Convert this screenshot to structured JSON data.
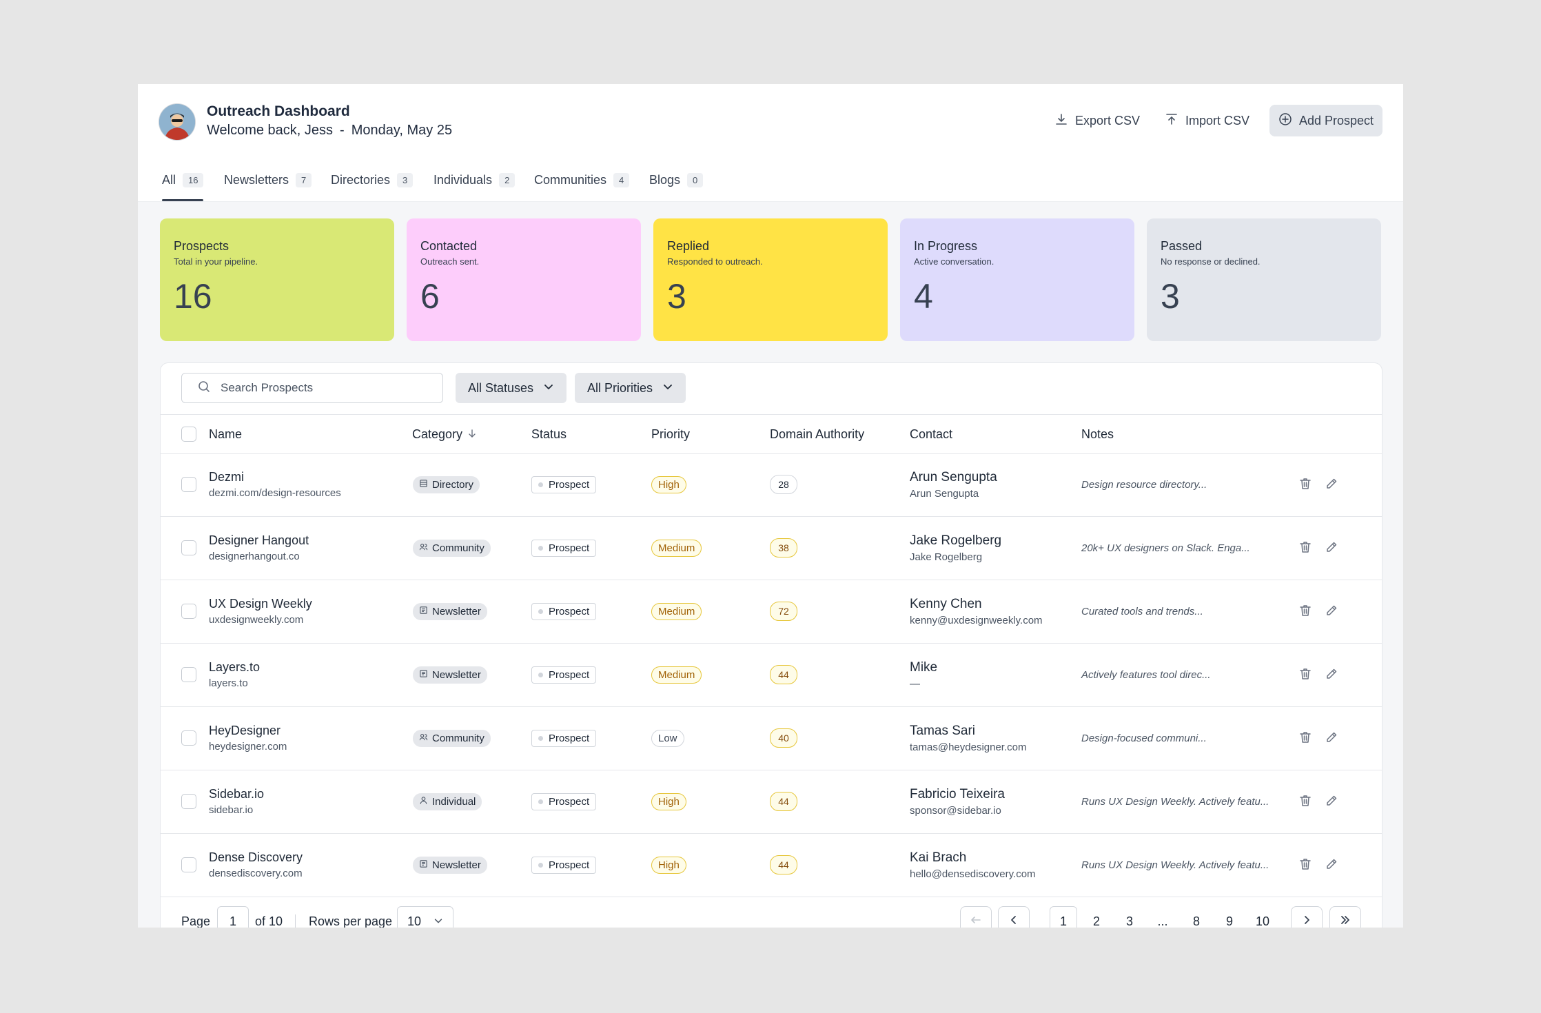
{
  "header": {
    "title": "Outreach Dashboard",
    "welcome": "Welcome back, Jess",
    "separator": "-",
    "date": "Monday, May 25",
    "export_label": "Export CSV",
    "import_label": "Import CSV",
    "add_label": "Add Prospect"
  },
  "tabs": [
    {
      "label": "All",
      "count": "16"
    },
    {
      "label": "Newsletters",
      "count": "7"
    },
    {
      "label": "Directories",
      "count": "3"
    },
    {
      "label": "Individuals",
      "count": "2"
    },
    {
      "label": "Communities",
      "count": "4"
    },
    {
      "label": "Blogs",
      "count": "0"
    }
  ],
  "stats": [
    {
      "title": "Prospects",
      "subtitle": "Total in your pipeline.",
      "value": "16",
      "color": "#d9e875"
    },
    {
      "title": "Contacted",
      "subtitle": "Outreach sent.",
      "value": "6",
      "color": "#fdcdfb"
    },
    {
      "title": "Replied",
      "subtitle": "Responded to outreach.",
      "value": "3",
      "color": "#ffe345"
    },
    {
      "title": "In Progress",
      "subtitle": "Active conversation.",
      "value": "4",
      "color": "#dedbfc"
    },
    {
      "title": "Passed",
      "subtitle": "No response or declined.",
      "value": "3",
      "color": "#e3e6ec"
    }
  ],
  "filters": {
    "search_placeholder": "Search Prospects",
    "status_label": "All Statuses",
    "priority_label": "All Priorities"
  },
  "columns": {
    "name": "Name",
    "category": "Category",
    "status": "Status",
    "priority": "Priority",
    "domain_authority": "Domain Authority",
    "contact": "Contact",
    "notes": "Notes"
  },
  "rows": [
    {
      "name": "Dezmi",
      "url": "dezmi.com/design-resources",
      "category": "Directory",
      "category_icon": "directory-icon",
      "status": "Prospect",
      "priority": "High",
      "da": "28",
      "contact_name": "Arun Sengupta",
      "contact_detail": "Arun Sengupta",
      "notes": "Design resource directory..."
    },
    {
      "name": "Designer Hangout",
      "url": "designerhangout.co",
      "category": "Community",
      "category_icon": "community-icon",
      "status": "Prospect",
      "priority": "Medium",
      "da": "38",
      "contact_name": "Jake Rogelberg",
      "contact_detail": "Jake Rogelberg",
      "notes": "20k+ UX designers on Slack. Enga..."
    },
    {
      "name": "UX Design Weekly",
      "url": "uxdesignweekly.com",
      "category": "Newsletter",
      "category_icon": "newsletter-icon",
      "status": "Prospect",
      "priority": "Medium",
      "da": "72",
      "contact_name": "Kenny Chen",
      "contact_detail": "kenny@uxdesignweekly.com",
      "notes": "Curated tools and trends..."
    },
    {
      "name": "Layers.to",
      "url": "layers.to",
      "category": "Newsletter",
      "category_icon": "newsletter-icon",
      "status": "Prospect",
      "priority": "Medium",
      "da": "44",
      "contact_name": "Mike",
      "contact_detail": "—",
      "notes": "Actively features tool direc..."
    },
    {
      "name": "HeyDesigner",
      "url": "heydesigner.com",
      "category": "Community",
      "category_icon": "community-icon",
      "status": "Prospect",
      "priority": "Low",
      "da": "40",
      "contact_name": "Tamas Sari",
      "contact_detail": "tamas@heydesigner.com",
      "notes": "Design-focused communi..."
    },
    {
      "name": "Sidebar.io",
      "url": "sidebar.io",
      "category": "Individual",
      "category_icon": "person-icon",
      "status": "Prospect",
      "priority": "High",
      "da": "44",
      "contact_name": "Fabricio Teixeira",
      "contact_detail": "sponsor@sidebar.io",
      "notes": "Runs UX Design Weekly. Actively featu..."
    },
    {
      "name": "Dense Discovery",
      "url": "densediscovery.com",
      "category": "Newsletter",
      "category_icon": "newsletter-icon",
      "status": "Prospect",
      "priority": "High",
      "da": "44",
      "contact_name": "Kai Brach",
      "contact_detail": "hello@densediscovery.com",
      "notes": "Runs UX Design Weekly. Actively featu..."
    }
  ],
  "pagination": {
    "page_label": "Page",
    "current_page": "1",
    "of_label": "of 10",
    "rows_label": "Rows per page",
    "rows_value": "10",
    "pages": [
      "1",
      "2",
      "3",
      "...",
      "8",
      "9",
      "10"
    ]
  }
}
